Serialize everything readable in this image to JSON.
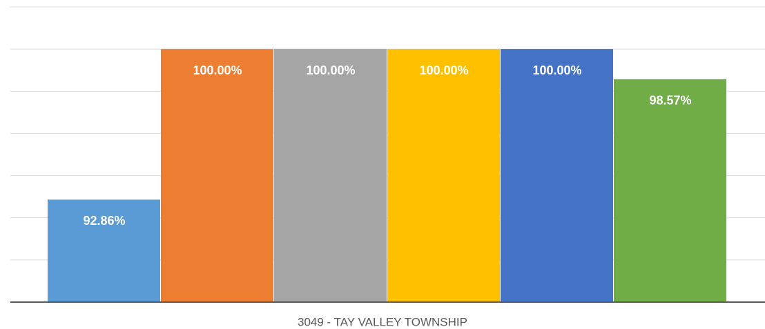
{
  "chart_data": {
    "type": "bar",
    "categories": [
      "3049 - TAY VALLEY TOWNSHIP"
    ],
    "series": [
      {
        "color": "#5b9bd5",
        "values": [
          92.86
        ],
        "value_labels": [
          "92.86%"
        ]
      },
      {
        "color": "#ed7d31",
        "values": [
          100
        ],
        "value_labels": [
          "100.00%"
        ]
      },
      {
        "color": "#a5a5a5",
        "values": [
          100
        ],
        "value_labels": [
          "100.00%"
        ]
      },
      {
        "color": "#ffc000",
        "values": [
          100
        ],
        "value_labels": [
          "100.00%"
        ]
      },
      {
        "color": "#4472c4",
        "values": [
          100
        ],
        "value_labels": [
          "100.00%"
        ]
      },
      {
        "color": "#70ad47",
        "values": [
          98.57
        ],
        "value_labels": [
          "98.57%"
        ]
      }
    ],
    "ylim": [
      88,
      102
    ],
    "yticks": [
      88,
      90,
      92,
      94,
      96,
      98,
      100,
      102
    ],
    "grid": true
  }
}
